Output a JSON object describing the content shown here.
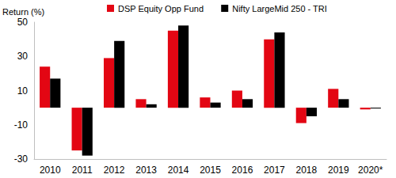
{
  "chart_data": {
    "type": "bar",
    "y_label": "Return (%)",
    "categories": [
      "2010",
      "2011",
      "2012",
      "2013",
      "2014",
      "2015",
      "2016",
      "2017",
      "2018",
      "2019",
      "2020*"
    ],
    "series": [
      {
        "name": "DSP Equity Opp Fund",
        "color": "#e30613",
        "values": [
          24,
          -25,
          29,
          5,
          45,
          6,
          10,
          40,
          -9,
          11,
          -1
        ]
      },
      {
        "name": "Nifty LargeMid 250 - TRI",
        "color": "#000000",
        "values": [
          17,
          -28,
          39,
          2,
          48,
          3,
          5,
          44,
          -5,
          5,
          -0.5
        ]
      }
    ],
    "ylim": [
      -30,
      50
    ],
    "yticks": [
      -30,
      -10,
      10,
      30,
      50
    ],
    "grid": false,
    "legend": "top"
  }
}
